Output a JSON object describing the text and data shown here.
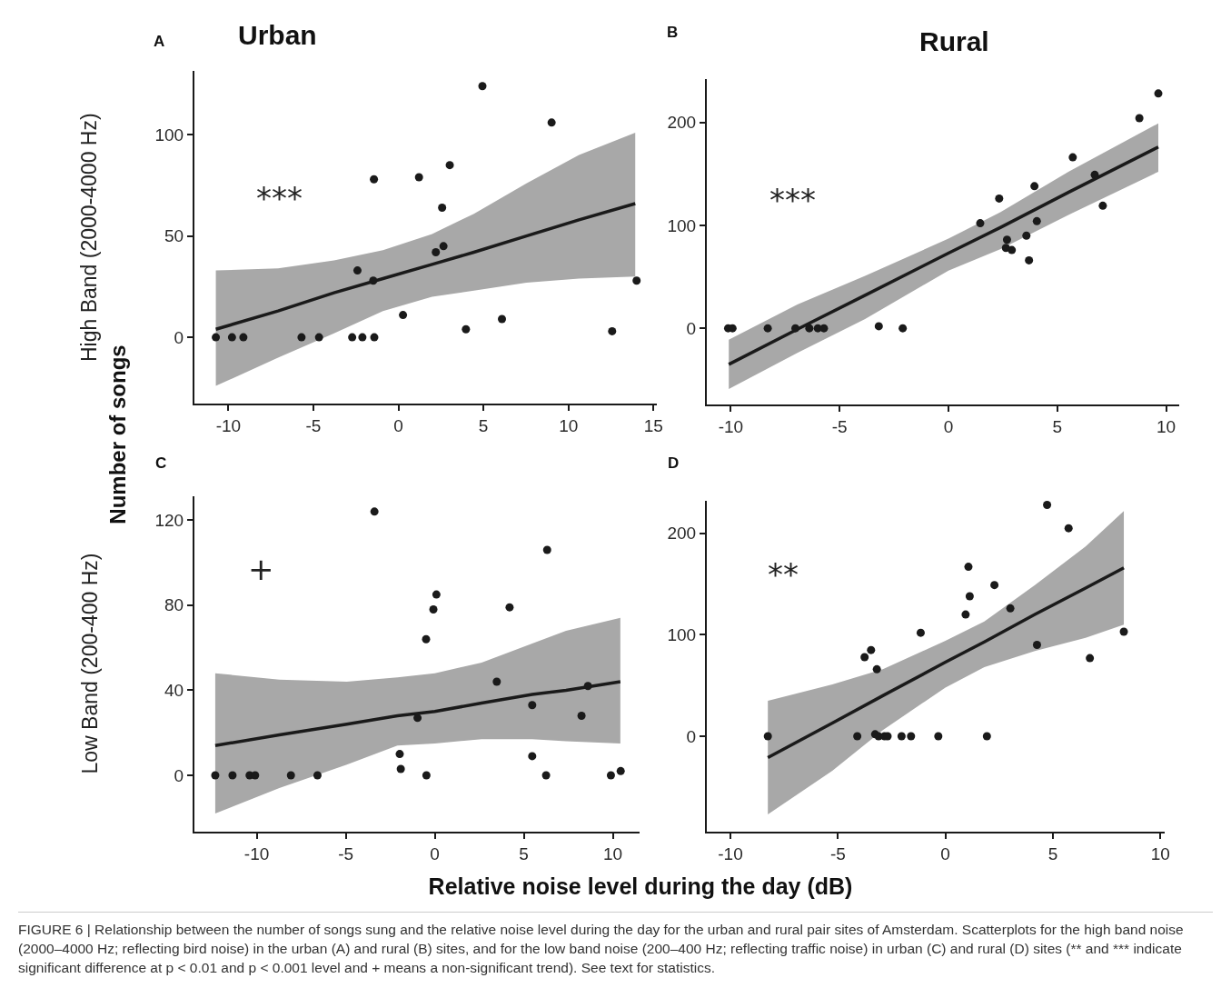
{
  "chart_data": [
    {
      "type": "scatter",
      "title": "Urban",
      "ylabel": "High Band (2000-4000 Hz)",
      "line_style": "solid",
      "xlim": [
        -12.0,
        15.2
      ],
      "ylim": [
        -32.7,
        131.5
      ],
      "xticks": [
        -10,
        -5,
        0,
        5,
        10,
        15
      ],
      "yticks": [
        0,
        50,
        100
      ],
      "annotations": [
        "A",
        "***",
        "Number of songs"
      ],
      "series": [
        {
          "marker": "circle",
          "color": "#1a1a1a",
          "x": [
            -10.74,
            -9.79,
            -9.12,
            -5.7,
            -4.67,
            -2.72,
            -2.12,
            -1.42,
            -2.41,
            -1.48,
            -1.44,
            0.27,
            1.21,
            2.2,
            2.57,
            2.65,
            3.02,
            3.97,
            4.94,
            6.09,
            9.01,
            12.57,
            14.01
          ],
          "values": [
            0,
            0,
            0,
            0,
            0,
            0,
            0,
            0,
            33,
            28,
            78,
            11,
            79,
            42,
            64,
            45,
            85,
            4,
            124,
            9,
            106,
            3,
            28
          ]
        },
        {
          "type": "line",
          "color": "#1a1a1a",
          "x": [
            -10.74,
            -7.08,
            -3.79,
            -0.91,
            1.98,
            4.44,
            7.53,
            10.62,
            13.93
          ],
          "values": [
            4,
            13,
            22,
            29,
            36,
            42,
            50,
            58,
            66
          ],
          "lower": [
            -24,
            -10,
            2,
            13,
            20,
            23,
            27,
            29,
            30
          ],
          "upper": [
            33,
            34,
            38,
            43,
            51,
            61,
            76,
            90,
            101
          ]
        }
      ]
    },
    {
      "type": "scatter",
      "title": "Rural",
      "line_style": "solid",
      "xlim": [
        -11.1,
        10.6
      ],
      "ylim": [
        -74,
        242
      ],
      "xticks": [
        -10,
        -5,
        0,
        5,
        10
      ],
      "yticks": [
        0,
        100,
        200
      ],
      "annotations": [
        "B",
        "***"
      ],
      "series": [
        {
          "marker": "circle",
          "color": "#1a1a1a",
          "x": [
            -10.12,
            -9.92,
            -8.3,
            -7.03,
            -6.39,
            -6.0,
            -5.72,
            -3.2,
            -2.1,
            1.46,
            2.33,
            2.69,
            2.64,
            2.91,
            3.58,
            3.7,
            3.95,
            4.06,
            5.71,
            6.72,
            7.09,
            8.77,
            9.64
          ],
          "values": [
            0,
            0,
            0,
            0,
            0,
            0,
            0,
            2,
            0,
            102,
            126,
            86,
            78,
            76,
            90,
            66,
            138,
            104,
            166,
            149,
            119,
            204,
            228
          ]
        },
        {
          "type": "line",
          "color": "#1a1a1a",
          "x": [
            -10.09,
            -6.94,
            -3.83,
            0,
            2.4,
            5.51,
            9.64
          ],
          "values": [
            -35,
            -1,
            32,
            73,
            98,
            132,
            176
          ],
          "lower": [
            -59,
            -24,
            9,
            56,
            77,
            110,
            152
          ],
          "upper": [
            -11,
            23,
            51,
            87,
            113,
            152,
            199
          ]
        }
      ]
    },
    {
      "type": "scatter",
      "ylabel": "Low Band (200-400 Hz)",
      "xlabel": "Relative noise level during the day (dB)",
      "line_style": "solid",
      "xlim": [
        -13.5,
        11.5
      ],
      "ylim": [
        -26.5,
        131.2
      ],
      "xticks": [
        -10,
        -5,
        0,
        5,
        10
      ],
      "yticks": [
        0,
        40,
        80,
        120
      ],
      "annotations": [
        "C",
        "+"
      ],
      "series": [
        {
          "marker": "circle",
          "color": "#1a1a1a",
          "x": [
            -12.33,
            -11.36,
            -10.4,
            -10.09,
            -8.08,
            -6.59,
            -1.97,
            -1.91,
            -0.97,
            -0.49,
            -0.47,
            -0.08,
            0.09,
            -3.39,
            3.48,
            4.2,
            5.47,
            5.47,
            6.25,
            6.31,
            8.24,
            8.6,
            9.89,
            10.44
          ],
          "values": [
            0,
            0,
            0,
            0,
            0,
            0,
            10,
            3,
            27,
            64,
            0,
            78,
            85,
            124,
            44,
            79,
            33,
            9,
            0,
            106,
            28,
            42,
            0,
            2
          ]
        },
        {
          "type": "line",
          "color": "#1a1a1a",
          "x": [
            -12.33,
            -8.73,
            -4.94,
            -2.1,
            0,
            2.63,
            5.47,
            7.37,
            10.42
          ],
          "values": [
            14,
            19,
            24,
            28,
            30,
            34,
            38,
            40,
            44
          ],
          "lower": [
            -18,
            -6,
            5,
            14,
            15,
            17,
            17,
            16,
            15
          ],
          "upper": [
            48,
            45,
            44,
            46,
            48,
            53,
            62,
            68,
            74
          ]
        }
      ]
    },
    {
      "type": "scatter",
      "line_style": "solid",
      "xlim": [
        -11.1,
        10.2
      ],
      "ylim": [
        -94,
        232
      ],
      "xticks": [
        -10,
        -5,
        0,
        5,
        10
      ],
      "yticks": [
        0,
        100,
        200
      ],
      "annotations": [
        "D",
        "**",
        "FIGURE 6 | Relationship between the number of songs sung and the relative noise level during the day for the urban and rural pair sites of Amsterdam. Scatterplots for the high band noise (2000–4000 Hz; reflecting bird noise) in the urban (A) and rural (B) sites, and for the low band noise (200–400 Hz; reflecting traffic noise) in urban (C) and rural (D) sites (** and *** indicate significant difference at p < 0.01 and p < 0.001 level and + means a non-significant trend). See text for statistics."
      ],
      "series": [
        {
          "marker": "circle",
          "color": "#1a1a1a",
          "x": [
            -8.26,
            -4.1,
            -3.27,
            -3.11,
            -2.83,
            -2.69,
            -2.04,
            -1.6,
            -0.33,
            1.93,
            -3.76,
            -3.46,
            -3.19,
            -1.15,
            0.94,
            1.07,
            1.13,
            2.28,
            3.02,
            4.26,
            4.73,
            5.73,
            6.72,
            8.3
          ],
          "values": [
            0,
            0,
            2,
            0,
            0,
            0,
            0,
            0,
            0,
            0,
            78,
            85,
            66,
            102,
            120,
            167,
            138,
            149,
            126,
            90,
            228,
            205,
            77,
            103
          ]
        },
        {
          "type": "line",
          "color": "#1a1a1a",
          "x": [
            -8.26,
            -5.26,
            -2.91,
            0,
            1.81,
            4.16,
            6.52,
            8.3
          ],
          "values": [
            -21,
            13,
            40,
            73,
            93,
            120,
            146,
            166
          ],
          "lower": [
            -77,
            -34,
            6,
            48,
            68,
            84,
            97,
            110
          ],
          "upper": [
            35,
            51,
            66,
            94,
            113,
            149,
            187,
            222
          ]
        }
      ]
    }
  ]
}
